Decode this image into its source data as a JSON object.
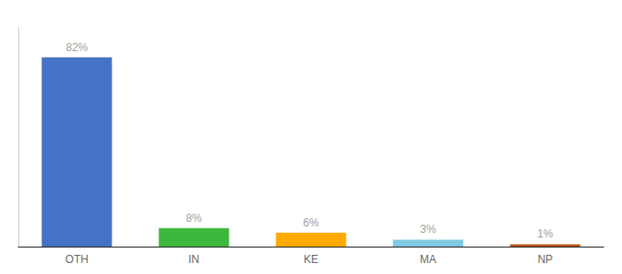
{
  "chart_data": {
    "type": "bar",
    "categories": [
      "OTH",
      "IN",
      "KE",
      "MA",
      "NP"
    ],
    "values": [
      82,
      8,
      6,
      3,
      1
    ],
    "value_labels": [
      "82%",
      "8%",
      "6%",
      "3%",
      "1%"
    ],
    "colors": [
      "#4472c4",
      "#3cb93c",
      "#ffaa00",
      "#7ec8e3",
      "#b5541c"
    ],
    "ylim": [
      0,
      95
    ],
    "data_labels": true,
    "tick_labels": "x",
    "grid": false
  }
}
